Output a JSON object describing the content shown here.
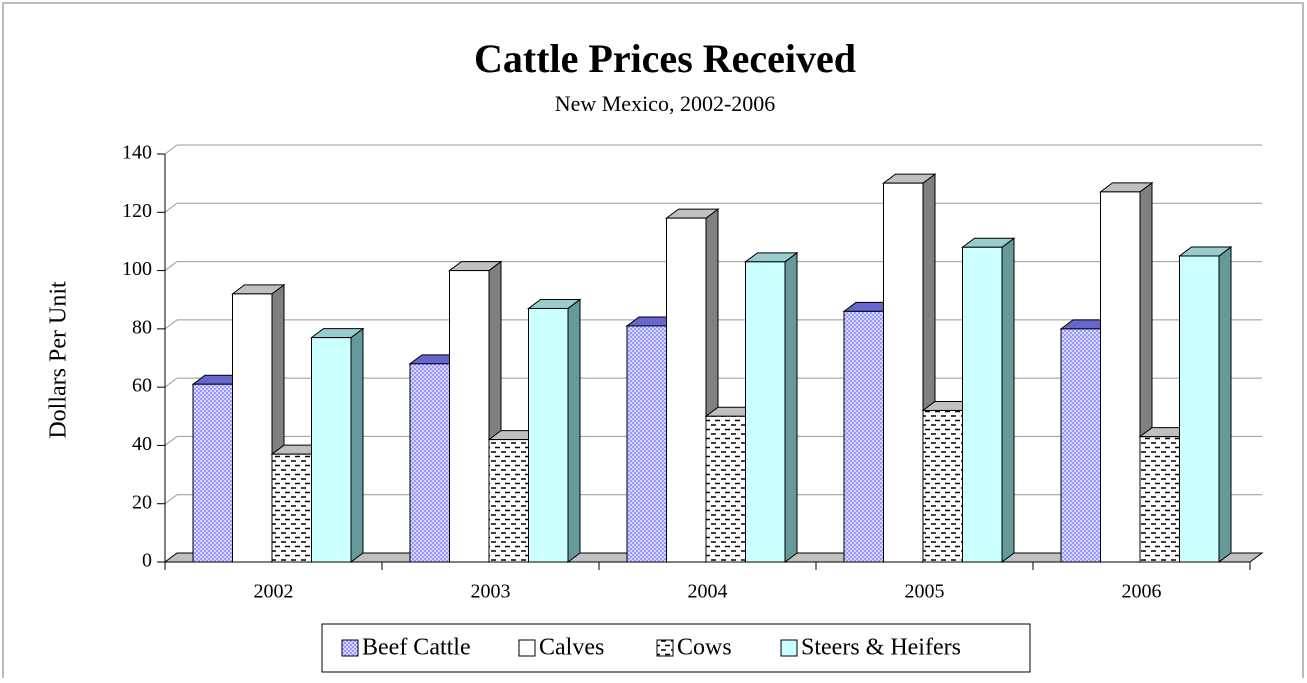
{
  "chart_data": {
    "type": "bar3d",
    "title": "Cattle Prices Received",
    "subtitle": "New Mexico, 2002-2006",
    "y_label": "Dollars Per Unit",
    "categories": [
      "2002",
      "2003",
      "2004",
      "2005",
      "2006"
    ],
    "series": [
      {
        "name": "Beef Cattle",
        "color": "#9999ff",
        "values": [
          61,
          68,
          81,
          86,
          80
        ]
      },
      {
        "name": "Calves",
        "color": "#ffffff",
        "values": [
          92,
          100,
          118,
          130,
          127
        ]
      },
      {
        "name": "Cows",
        "color": "#ffffff",
        "values": [
          37,
          42,
          50,
          52,
          43
        ]
      },
      {
        "name": "Steers & Heifers",
        "color": "#ccffff",
        "values": [
          77,
          87,
          103,
          108,
          105
        ]
      }
    ],
    "ylim": [
      0,
      140
    ],
    "yticks": [
      0,
      20,
      40,
      60,
      80,
      100,
      120,
      140
    ],
    "grid": true,
    "legend": "bottom"
  }
}
